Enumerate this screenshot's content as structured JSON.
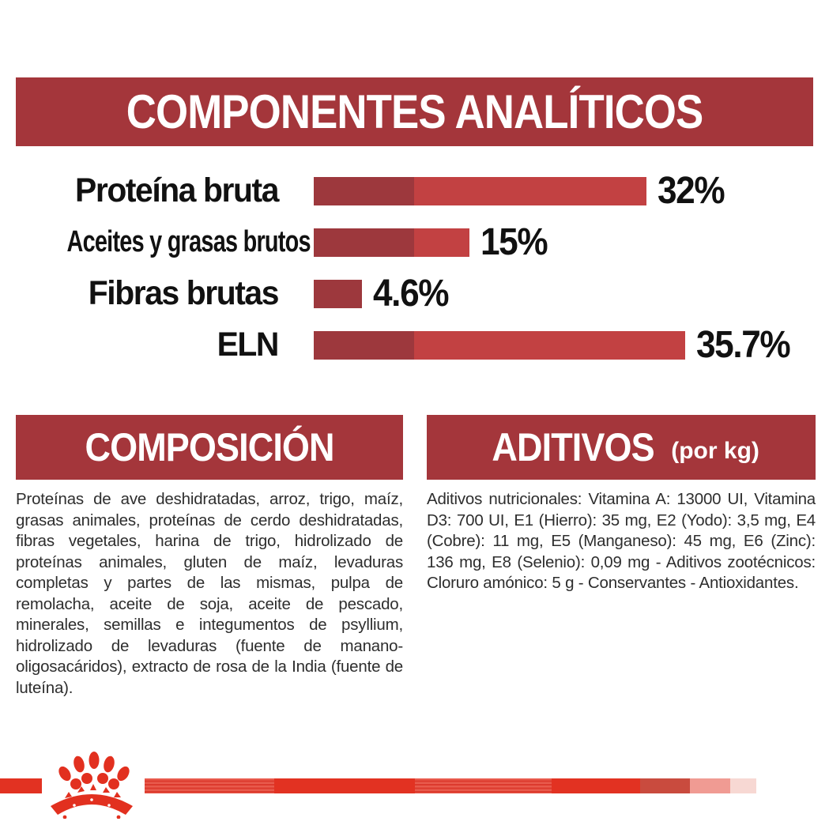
{
  "colors": {
    "header_red": "#A4363B",
    "bar_dark": "#9D383D",
    "bar_light": "#C24142",
    "logo_red": "#E2301F",
    "band_solid": "#E23222",
    "band_stripe_light": "#E85A4C",
    "band_stripe_dark": "#DC3A2D",
    "band_dark_seg": "#C94B3E",
    "band_pink": "#F09B93",
    "band_pale": "#F7D8D3",
    "ink": "#111111",
    "body_ink": "#2E2E2E"
  },
  "header": {
    "title": "COMPONENTES ANALÍTICOS"
  },
  "chart_data": {
    "type": "bar",
    "orientation": "horizontal",
    "title": "COMPONENTES ANALÍTICOS",
    "categories": [
      "Proteína bruta",
      "Aceites y grasas brutos",
      "Fibras brutas",
      "ELN"
    ],
    "values": [
      32,
      15,
      4.6,
      35.7
    ],
    "value_labels": [
      "32%",
      "15%",
      "4.6%",
      "35.7%"
    ],
    "unit": "%",
    "xlim": [
      0,
      40
    ],
    "grid": false,
    "legend": false,
    "bar_colors": [
      "#9D383D",
      "#C24142"
    ]
  },
  "composition": {
    "title": "COMPOSICIÓN",
    "body": "Proteínas de ave deshidratadas, arroz, trigo, maíz, grasas animales, proteínas de cerdo deshidratadas, fibras vegetales, harina de trigo, hidrolizado de proteínas animales, gluten de maíz, levaduras completas y partes de las mismas, pulpa de remolacha, aceite de soja, aceite de pescado, minerales, semillas e integumentos de psyllium, hidrolizado de levaduras (fuente de manano-oligosacáridos), extracto de rosa de la India (fuente de luteína)."
  },
  "additives": {
    "title": "ADITIVOS",
    "unit": "(por kg)",
    "body": "Aditivos nutricionales: Vitamina A: 13000 UI, Vitamina D3: 700 UI, E1 (Hierro): 35 mg, E2 (Yodo): 3,5 mg, E4 (Cobre): 11 mg, E5 (Manganeso): 45 mg, E6 (Zinc): 136 mg, E8 (Selenio): 0,09 mg - Aditivos zootécnicos: Cloruro amónico: 5 g - Conservantes - Antioxidantes."
  },
  "footer": {
    "logo": "royal-canin-paw-logo"
  }
}
